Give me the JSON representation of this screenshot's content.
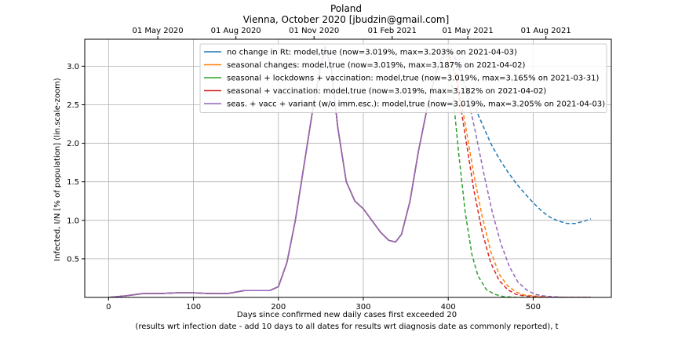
{
  "chart_data": {
    "type": "line",
    "title": "Poland",
    "subtitle": "Vienna, October 2020 [jbudzin@gmail.com]",
    "xlabel_line1": "Days since confirmed new daily cases first exceeded 20",
    "xlabel_line2": "(results wrt infection date - add 10 days to all dates for results wrt diagnosis date as commonly reported), t",
    "ylabel": "Infected, I/N [% of population] (lin.scale-zoom)",
    "xlim": [
      -28,
      592
    ],
    "ylim": [
      0,
      3.35
    ],
    "x_ticks": [
      0,
      100,
      200,
      300,
      400,
      500
    ],
    "y_ticks": [
      0.5,
      1.0,
      1.5,
      2.0,
      2.5,
      3.0
    ],
    "y_tick_labels": [
      "0.5",
      "1.0",
      "1.5",
      "2.0",
      "2.5",
      "3.0"
    ],
    "top_axis_ticks": [
      {
        "x": 58,
        "label": "01 May 2020"
      },
      {
        "x": 150,
        "label": "01 Aug 2020"
      },
      {
        "x": 242,
        "label": "01 Nov 2020"
      },
      {
        "x": 334,
        "label": "01 Feb 2021"
      },
      {
        "x": 423,
        "label": "01 May 2021"
      },
      {
        "x": 515,
        "label": "01 Aug 2021"
      }
    ],
    "grid": true,
    "legend_position": "top-right",
    "history": {
      "x": [
        0,
        20,
        40,
        60,
        80,
        100,
        120,
        140,
        160,
        175,
        190,
        200,
        210,
        220,
        230,
        240,
        248,
        255,
        262,
        270,
        280,
        290,
        300,
        310,
        320,
        330,
        338,
        345,
        355,
        365,
        375,
        385,
        392
      ],
      "y": [
        0.0,
        0.02,
        0.05,
        0.05,
        0.06,
        0.06,
        0.05,
        0.05,
        0.09,
        0.09,
        0.09,
        0.14,
        0.45,
        1.0,
        1.7,
        2.4,
        2.9,
        3.25,
        3.0,
        2.2,
        1.5,
        1.25,
        1.15,
        1.0,
        0.85,
        0.74,
        0.72,
        0.82,
        1.25,
        1.9,
        2.45,
        2.9,
        3.1
      ]
    },
    "series": [
      {
        "name": "no change in Rt: model,true (now=3.019%, max=3.203% on 2021-04-03)",
        "color": "#1f77b4",
        "x": [
          392,
          405,
          420,
          430,
          440,
          450,
          460,
          470,
          480,
          490,
          500,
          510,
          520,
          530,
          540,
          550,
          560,
          568
        ],
        "y": [
          3.1,
          3.2,
          2.75,
          2.5,
          2.25,
          2.0,
          1.8,
          1.63,
          1.48,
          1.35,
          1.23,
          1.12,
          1.04,
          0.99,
          0.96,
          0.96,
          0.99,
          1.02
        ]
      },
      {
        "name": "seasonal changes: model,true (now=3.019%, max=3.187% on 2021-04-02)",
        "color": "#ff7f0e",
        "x": [
          392,
          400,
          410,
          420,
          430,
          440,
          450,
          460,
          470,
          480,
          490,
          500,
          510,
          530,
          550,
          568
        ],
        "y": [
          3.1,
          3.19,
          2.85,
          2.25,
          1.6,
          1.05,
          0.6,
          0.3,
          0.15,
          0.07,
          0.03,
          0.02,
          0.01,
          0.0,
          0.0,
          0.0
        ]
      },
      {
        "name": "seasonal + lockdowns + vaccination: model,true (now=3.019%, max=3.165% on 2021-03-31)",
        "color": "#2ca02c",
        "x": [
          392,
          398,
          405,
          412,
          420,
          428,
          435,
          445,
          455,
          465,
          480,
          500,
          530,
          568
        ],
        "y": [
          3.1,
          3.16,
          2.7,
          1.9,
          1.1,
          0.55,
          0.28,
          0.1,
          0.04,
          0.01,
          0.0,
          0.0,
          0.0,
          0.0
        ]
      },
      {
        "name": "seasonal + vaccination: model,true (now=3.019%, max=3.182% on 2021-04-02)",
        "color": "#d62728",
        "x": [
          392,
          400,
          410,
          420,
          430,
          440,
          450,
          460,
          470,
          480,
          490,
          500,
          520,
          545,
          568
        ],
        "y": [
          3.1,
          3.18,
          2.8,
          2.1,
          1.4,
          0.85,
          0.45,
          0.22,
          0.1,
          0.04,
          0.02,
          0.01,
          0.0,
          0.0,
          0.0
        ]
      },
      {
        "name": "seas. + vacc + variant (w/o imm.esc.): model,true (now=3.019%, max=3.205% on 2021-04-03)",
        "color": "#9467bd",
        "x": [
          392,
          402,
          412,
          422,
          432,
          442,
          452,
          462,
          472,
          482,
          492,
          502,
          512,
          522,
          540,
          568
        ],
        "y": [
          3.1,
          3.2,
          3.05,
          2.65,
          2.15,
          1.6,
          1.1,
          0.7,
          0.4,
          0.2,
          0.1,
          0.04,
          0.02,
          0.01,
          0.0,
          0.0
        ]
      }
    ]
  }
}
